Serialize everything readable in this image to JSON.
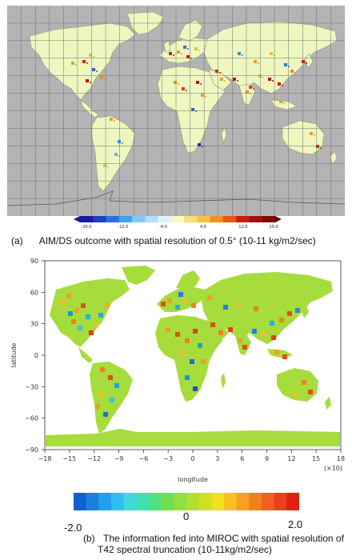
{
  "panel_a": {
    "caption_letter": "(a)",
    "caption_text": "AIM/DS outcome with spatial resolution of 0.5° (10-11 kg/m2/sec)",
    "colorbar_ticks": [
      "-20.0",
      "-12.0",
      "-4.0",
      "4.0",
      "12.0",
      "20.0"
    ],
    "colors": {
      "ocean": "#b4b4b4",
      "land": "#eef7c0",
      "grid": "#6f6f6f"
    }
  },
  "panel_b": {
    "caption_letter": "(b)",
    "caption_line1": "The information fed into MIROC with spatial resolution of",
    "caption_line2": "T42 spectral truncation (10-11kg/m2/sec)",
    "y_axis_label": "latitude",
    "x_axis_label": "longitude",
    "x_scale_note": "(×10)",
    "y_ticks": [
      "90",
      "60",
      "30",
      "0",
      "−30",
      "−60",
      "−90"
    ],
    "x_ticks": [
      "−18",
      "−15",
      "−12",
      "−9",
      "−6",
      "−3",
      "0",
      "3",
      "6",
      "9",
      "12",
      "15",
      "18"
    ],
    "colorbar_ticks": [
      "-2.0",
      "0",
      "2.0"
    ],
    "colors": {
      "land": "#a6dc3c",
      "ocean": "#ffffff"
    }
  }
}
